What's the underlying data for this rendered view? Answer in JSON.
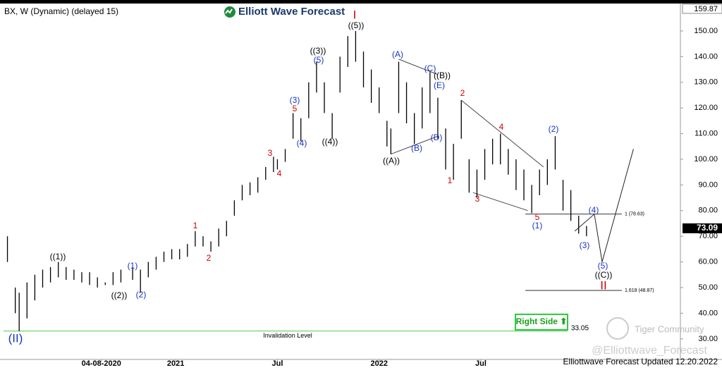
{
  "header": {
    "symbol": "BX, W (Dynamic) (delayed 15)",
    "logo": "Elliott Wave Forecast"
  },
  "chart_data": {
    "type": "ohlc",
    "color": "#000000",
    "x": [
      1,
      3,
      4,
      6,
      8,
      10,
      12,
      14,
      16,
      18,
      20,
      22,
      24,
      26,
      28,
      30,
      33,
      35,
      37,
      39,
      41,
      43,
      45,
      47,
      49,
      51,
      53,
      55,
      57,
      59,
      61,
      63,
      65,
      67,
      69,
      70,
      72,
      74,
      76,
      78,
      80,
      82,
      84,
      86,
      88,
      90,
      92,
      94,
      96,
      98,
      99,
      101,
      103,
      105,
      107,
      109,
      111,
      113,
      115,
      117,
      119,
      121,
      123,
      125,
      127,
      129,
      131,
      133,
      135,
      137,
      139,
      141,
      143,
      145,
      147,
      149
    ],
    "high": [
      70,
      50,
      48,
      52,
      55,
      57,
      58,
      60,
      58,
      57,
      56,
      56,
      54,
      52,
      56,
      57,
      58,
      57,
      60,
      62,
      64,
      65,
      65,
      67,
      72,
      70,
      68,
      73,
      76,
      84,
      90,
      91,
      93,
      97,
      101,
      100,
      104,
      118,
      116,
      130,
      138,
      130,
      118,
      140,
      148,
      150,
      142,
      135,
      128,
      115,
      112,
      138,
      130,
      118,
      128,
      134,
      124,
      112,
      106,
      123,
      100,
      96,
      104,
      108,
      110,
      104,
      100,
      96,
      90,
      96,
      100,
      109,
      92,
      88,
      78,
      74
    ],
    "low": [
      60,
      40,
      33,
      38,
      45,
      50,
      52,
      54,
      53,
      53,
      52,
      51,
      50,
      51,
      51,
      52,
      53,
      48,
      54,
      57,
      60,
      61,
      61,
      62,
      66,
      66,
      64,
      66,
      70,
      78,
      84,
      86,
      87,
      92,
      95,
      96,
      99,
      108,
      107,
      116,
      126,
      118,
      108,
      126,
      136,
      138,
      128,
      122,
      118,
      105,
      102,
      118,
      114,
      106,
      112,
      118,
      108,
      96,
      92,
      108,
      87,
      85,
      92,
      98,
      98,
      94,
      88,
      84,
      79,
      86,
      90,
      96,
      80,
      76,
      71,
      70
    ],
    "projection": {
      "x": [
        146,
        151,
        153,
        161
      ],
      "y": [
        72,
        78.63,
        60,
        104
      ]
    },
    "trendlines": [
      {
        "x": [
          101,
          111
        ],
        "y": [
          139,
          133
        ]
      },
      {
        "x": [
          99,
          111
        ],
        "y": [
          102,
          109
        ]
      },
      {
        "x": [
          117,
          138
        ],
        "y": [
          123,
          97
        ]
      },
      {
        "x": [
          120,
          134
        ],
        "y": [
          87,
          80
        ]
      }
    ],
    "xlim": [
      0,
      173
    ],
    "xticks": [
      {
        "value": 25,
        "label": "04-08-2020"
      },
      {
        "value": 44,
        "label": "2021"
      },
      {
        "value": 70,
        "label": "Jul"
      },
      {
        "value": 96,
        "label": "2022"
      },
      {
        "value": 122,
        "label": "Jul"
      }
    ],
    "ylim": [
      22,
      159.87
    ],
    "yticks": [
      {
        "value": 30,
        "label": "30.00"
      },
      {
        "value": 40,
        "label": "40.00"
      },
      {
        "value": 50,
        "label": "50.00"
      },
      {
        "value": 60,
        "label": "60.00"
      },
      {
        "value": 70,
        "label": "70.00"
      },
      {
        "value": 80,
        "label": "80.00"
      },
      {
        "value": 90,
        "label": "90.00"
      },
      {
        "value": 100,
        "label": "100.00"
      },
      {
        "value": 110,
        "label": "110.00"
      },
      {
        "value": 120,
        "label": "120.00"
      },
      {
        "value": 130,
        "label": "130.00"
      },
      {
        "value": 140,
        "label": "140.00"
      },
      {
        "value": 150,
        "label": "150.00"
      }
    ],
    "top_price": 159.87,
    "last_price": 73.09,
    "levels": [
      {
        "value": 78.63,
        "label": "1 (78.63)"
      },
      {
        "value": 48.87,
        "label": "1.618 (48.87)"
      }
    ],
    "invalidation": {
      "value": 33.05,
      "label": "33.05",
      "text": "Invalidation Level"
    },
    "wave_labels": [
      {
        "text": "I",
        "color": "#d00000"
      },
      {
        "text": "((5))",
        "color": "#000000"
      },
      {
        "text": "((3))",
        "color": "#000000"
      },
      {
        "text": "(5)",
        "color": "#1a35c0"
      },
      {
        "text": "(3)",
        "color": "#1a35c0"
      },
      {
        "text": "5",
        "color": "#d00000"
      },
      {
        "text": "(4)",
        "color": "#1a35c0"
      },
      {
        "text": "((4))",
        "color": "#000000"
      },
      {
        "text": "3",
        "color": "#d00000"
      },
      {
        "text": "4",
        "color": "#d00000"
      },
      {
        "text": "1",
        "color": "#d00000"
      },
      {
        "text": "2",
        "color": "#d00000"
      },
      {
        "text": "((1))",
        "color": "#000000"
      },
      {
        "text": "(1)",
        "color": "#1a35c0"
      },
      {
        "text": "((2))",
        "color": "#000000"
      },
      {
        "text": "(2)",
        "color": "#1a35c0"
      },
      {
        "text": "(II)",
        "color": "#1a35c0"
      },
      {
        "text": "((A))",
        "color": "#000000"
      },
      {
        "text": "(A)",
        "color": "#1a35c0"
      },
      {
        "text": "(B)",
        "color": "#1a35c0"
      },
      {
        "text": "(C)",
        "color": "#1a35c0"
      },
      {
        "text": "((B))",
        "color": "#000000"
      },
      {
        "text": "(E)",
        "color": "#1a35c0"
      },
      {
        "text": "(D)",
        "color": "#1a35c0"
      },
      {
        "text": "1",
        "color": "#d00000"
      },
      {
        "text": "2",
        "color": "#d00000"
      },
      {
        "text": "3",
        "color": "#d00000"
      },
      {
        "text": "4",
        "color": "#d00000"
      },
      {
        "text": "5",
        "color": "#d00000"
      },
      {
        "text": "(1)",
        "color": "#1a35c0"
      },
      {
        "text": "(2)",
        "color": "#1a35c0"
      },
      {
        "text": "(4)",
        "color": "#1a35c0"
      },
      {
        "text": "(3)",
        "color": "#1a35c0"
      },
      {
        "text": "(5)",
        "color": "#1a35c0"
      },
      {
        "text": "((C))",
        "color": "#000000"
      },
      {
        "text": "II",
        "color": "#d00000"
      }
    ]
  },
  "footer": {
    "right_side": "Right Side ⬆",
    "updated": "Elliottwave Forecast Updated 12.20.2022",
    "handle": "@Elliottwave_Forecast",
    "community": "Tiger Community"
  }
}
